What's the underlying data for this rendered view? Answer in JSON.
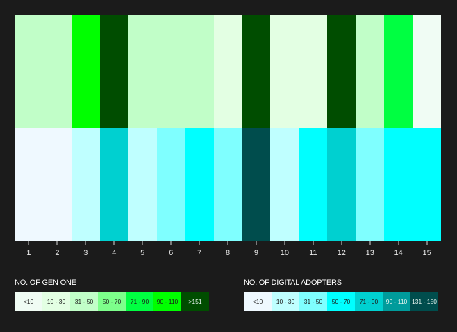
{
  "chart_data": {
    "type": "heatmap",
    "title": "",
    "xlabel": "",
    "ylabel": "",
    "x": [
      "1",
      "2",
      "3",
      "4",
      "5",
      "6",
      "7",
      "8",
      "9",
      "10",
      "11",
      "12",
      "13",
      "14",
      "15"
    ],
    "rows": [
      {
        "name": "No. of Gen One",
        "buckets": [
          "31 - 50",
          "31 - 50",
          "90 - 110",
          ">151",
          "31 - 50",
          "31 - 50",
          "31 - 50",
          "10 - 30",
          ">151",
          "10 - 30",
          "10 - 30",
          ">151",
          "31 - 50",
          "71 - 90",
          "<10"
        ],
        "colors": [
          "#c1fec8",
          "#c1fec8",
          "#00ff00",
          "#004d00",
          "#c1fec8",
          "#c1fec8",
          "#c1fec8",
          "#e3ffe3",
          "#004d00",
          "#e3ffe3",
          "#e3ffe3",
          "#004d00",
          "#c1fec8",
          "#00ff41",
          "#f0fcf4"
        ]
      },
      {
        "name": "No. of Digital Adopters",
        "buckets": [
          "<10",
          "<10",
          "10 - 30",
          "71 - 90",
          "10 - 30",
          "31 - 50",
          "50 - 70",
          "31 - 50",
          "131 - 150",
          "10 - 30",
          "50 - 70",
          "71 - 90",
          "31 - 50",
          "50 - 70",
          "50 - 70"
        ],
        "colors": [
          "#eff9ff",
          "#eff9ff",
          "#bfffff",
          "#00d0d0",
          "#bfffff",
          "#7fffff",
          "#00ffff",
          "#7fffff",
          "#004d4d",
          "#bfffff",
          "#00ffff",
          "#00d0d0",
          "#7fffff",
          "#00ffff",
          "#00ffff"
        ]
      }
    ],
    "legends": [
      {
        "title": "NO. OF GEN ONE",
        "items": [
          {
            "label": "<10",
            "color": "#f0fcf4"
          },
          {
            "label": "10 - 30",
            "color": "#e3ffe3"
          },
          {
            "label": "31 - 50",
            "color": "#c1fec8"
          },
          {
            "label": "50 - 70",
            "color": "#7dff8b"
          },
          {
            "label": "71 - 90",
            "color": "#00ff41"
          },
          {
            "label": "90 - 110",
            "color": "#00ff00"
          },
          {
            "label": ">151",
            "color": "#004d00"
          }
        ]
      },
      {
        "title": "NO. OF DIGITAL ADOPTERS",
        "items": [
          {
            "label": "<10",
            "color": "#eff9ff"
          },
          {
            "label": "10 - 30",
            "color": "#bfffff"
          },
          {
            "label": "31 - 50",
            "color": "#7fffff"
          },
          {
            "label": "50 - 70",
            "color": "#00ffff"
          },
          {
            "label": "71 - 90",
            "color": "#00d0d0"
          },
          {
            "label": "90 - 110",
            "color": "#009b9b"
          },
          {
            "label": "131 - 150",
            "color": "#004d4d"
          }
        ]
      }
    ],
    "legend_position": "bottom",
    "grid": false
  },
  "theme": {
    "background": "#1b1b1b",
    "text": "#ffffff"
  }
}
